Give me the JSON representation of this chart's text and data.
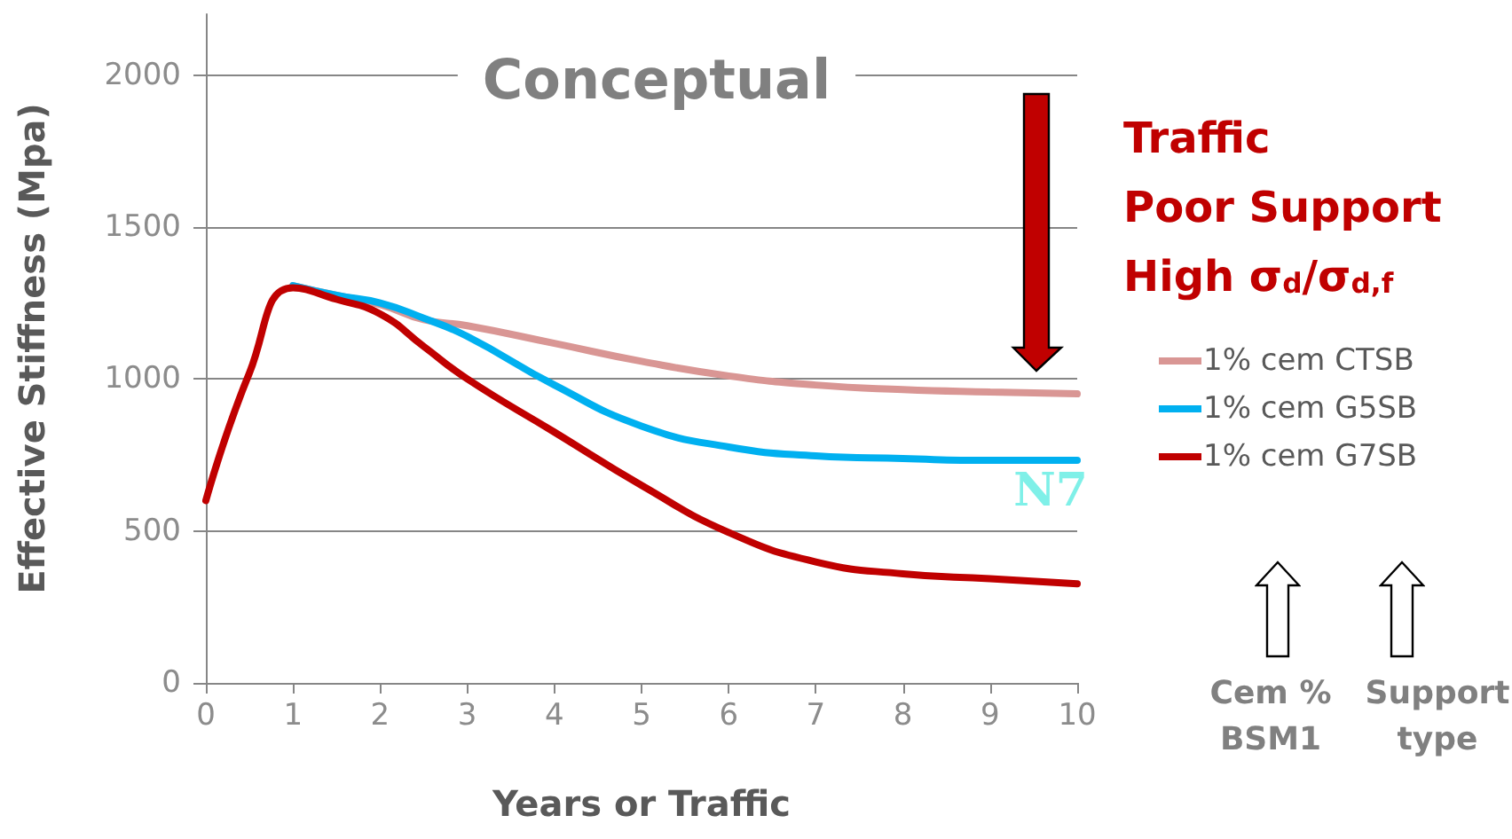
{
  "chart_data": {
    "type": "line",
    "title": "Conceptual",
    "xlabel": "Years or Traffic",
    "ylabel": "Effective Stiffness (Mpa)",
    "x": [
      0,
      0.5,
      1,
      1.5,
      2,
      2.5,
      3,
      4,
      5,
      6,
      7,
      8,
      9,
      10
    ],
    "series": [
      {
        "name": "1% cem CTSB",
        "color": "#d99694",
        "values": [
          null,
          null,
          1307,
          1275,
          1245,
          1195,
          1175,
          1117,
          1058,
          1010,
          980,
          965,
          957,
          951
        ]
      },
      {
        "name": "1% cem G5SB",
        "color": "#00b0f0",
        "values": [
          null,
          null,
          1307,
          1275,
          1250,
          1200,
          1140,
          980,
          845,
          776,
          747,
          738,
          732,
          732
        ]
      },
      {
        "name": "1% cem G7SB",
        "color": "#c00000",
        "values": [
          600,
          1020,
          1300,
          1262,
          1214,
          1107,
          1000,
          825,
          650,
          495,
          398,
          359,
          343,
          326
        ]
      }
    ],
    "annotations": [
      "Traffic",
      "Poor Support",
      "High σ$_{d}$/σ$_{d,f}$",
      "N7",
      "Cem % BSM1",
      "Support type"
    ],
    "xlim": [
      0,
      10
    ],
    "xticks": [
      0,
      1,
      2,
      3,
      4,
      5,
      6,
      7,
      8,
      9,
      10
    ],
    "ylim": [
      0,
      2200
    ],
    "yticks": [
      0,
      500,
      1000,
      1500,
      2000
    ],
    "grid": "y",
    "legend": "right",
    "marker": "none",
    "line_style": "solid"
  }
}
